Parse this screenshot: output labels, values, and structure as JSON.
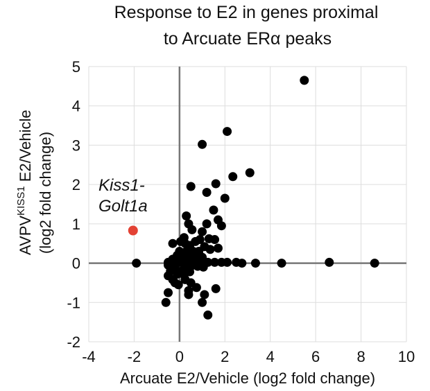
{
  "chart_data": {
    "type": "scatter",
    "title_lines": [
      "Response to E2 in genes proximal",
      "to Arcuate ERα peaks"
    ],
    "xlabel": "Arcuate E2/Vehicle (log2 fold change)",
    "ylabel": {
      "main": "AVPV",
      "superscript": "KISS1",
      "rest": " E2/Vehicle",
      "line2": "(log2 fold change)"
    },
    "xlim": [
      -4,
      10
    ],
    "ylim": [
      -2,
      5
    ],
    "xticks": [
      -4,
      -2,
      0,
      2,
      4,
      6,
      8,
      10
    ],
    "yticks": [
      -2,
      -1,
      0,
      1,
      2,
      3,
      4,
      5
    ],
    "grid": true,
    "colors": {
      "points": "#000000",
      "highlight": "#e34234",
      "grid": "#dddddd",
      "axis": "#777777"
    },
    "annotation": {
      "lines": [
        "Kiss1-",
        "Golt1a"
      ]
    },
    "highlight": {
      "label": "Kiss1-Golt1a",
      "x": -2.05,
      "y": 0.83
    },
    "points": [
      [
        5.5,
        4.65
      ],
      [
        2.1,
        3.35
      ],
      [
        1.0,
        3.02
      ],
      [
        3.1,
        2.3
      ],
      [
        2.35,
        2.2
      ],
      [
        1.6,
        2.02
      ],
      [
        0.5,
        1.95
      ],
      [
        1.2,
        1.8
      ],
      [
        2.0,
        1.65
      ],
      [
        1.5,
        1.35
      ],
      [
        0.3,
        1.2
      ],
      [
        1.7,
        1.1
      ],
      [
        0.4,
        1.0
      ],
      [
        1.2,
        1.0
      ],
      [
        1.85,
        0.95
      ],
      [
        0.55,
        0.85
      ],
      [
        1.0,
        0.8
      ],
      [
        0.2,
        0.65
      ],
      [
        1.3,
        0.62
      ],
      [
        0.9,
        0.6
      ],
      [
        1.55,
        0.6
      ],
      [
        0.05,
        0.55
      ],
      [
        0.7,
        0.55
      ],
      [
        0.25,
        0.5
      ],
      [
        -0.3,
        0.5
      ],
      [
        0.45,
        0.45
      ],
      [
        1.1,
        0.42
      ],
      [
        1.7,
        0.38
      ],
      [
        1.35,
        0.35
      ],
      [
        0.0,
        0.3
      ],
      [
        0.3,
        0.3
      ],
      [
        0.6,
        0.3
      ],
      [
        0.85,
        0.3
      ],
      [
        -0.1,
        0.2
      ],
      [
        0.15,
        0.2
      ],
      [
        0.45,
        0.2
      ],
      [
        0.7,
        0.18
      ],
      [
        1.0,
        0.15
      ],
      [
        -0.3,
        0.1
      ],
      [
        0.2,
        0.1
      ],
      [
        -0.5,
        0.02
      ],
      [
        -0.2,
        0.02
      ],
      [
        0.05,
        0.02
      ],
      [
        0.35,
        0.02
      ],
      [
        0.65,
        0.02
      ],
      [
        0.95,
        0.02
      ],
      [
        1.25,
        0.02
      ],
      [
        1.55,
        0.02
      ],
      [
        1.85,
        0.02
      ],
      [
        2.1,
        0.02
      ],
      [
        2.5,
        0.02
      ],
      [
        2.75,
        0.0
      ],
      [
        3.35,
        0.0
      ],
      [
        4.5,
        0.0
      ],
      [
        6.6,
        0.02
      ],
      [
        8.6,
        0.0
      ],
      [
        -1.9,
        0.0
      ],
      [
        -0.5,
        -0.05
      ],
      [
        -0.2,
        -0.08
      ],
      [
        0.25,
        -0.08
      ],
      [
        0.5,
        -0.08
      ],
      [
        0.8,
        -0.08
      ],
      [
        1.05,
        -0.1
      ],
      [
        -0.4,
        -0.2
      ],
      [
        0.1,
        -0.2
      ],
      [
        0.45,
        -0.22
      ],
      [
        -0.1,
        -0.28
      ],
      [
        0.2,
        -0.3
      ],
      [
        -0.5,
        -0.32
      ],
      [
        -0.3,
        -0.42
      ],
      [
        0.25,
        -0.42
      ],
      [
        -0.2,
        -0.5
      ],
      [
        0.5,
        -0.5
      ],
      [
        -0.05,
        -0.55
      ],
      [
        0.75,
        -0.62
      ],
      [
        1.6,
        -0.65
      ],
      [
        0.4,
        -0.7
      ],
      [
        -0.5,
        -0.75
      ],
      [
        0.4,
        -0.8
      ],
      [
        1.1,
        -0.8
      ],
      [
        -0.6,
        -1.0
      ],
      [
        1.0,
        -1.0
      ],
      [
        1.25,
        -1.32
      ]
    ]
  }
}
